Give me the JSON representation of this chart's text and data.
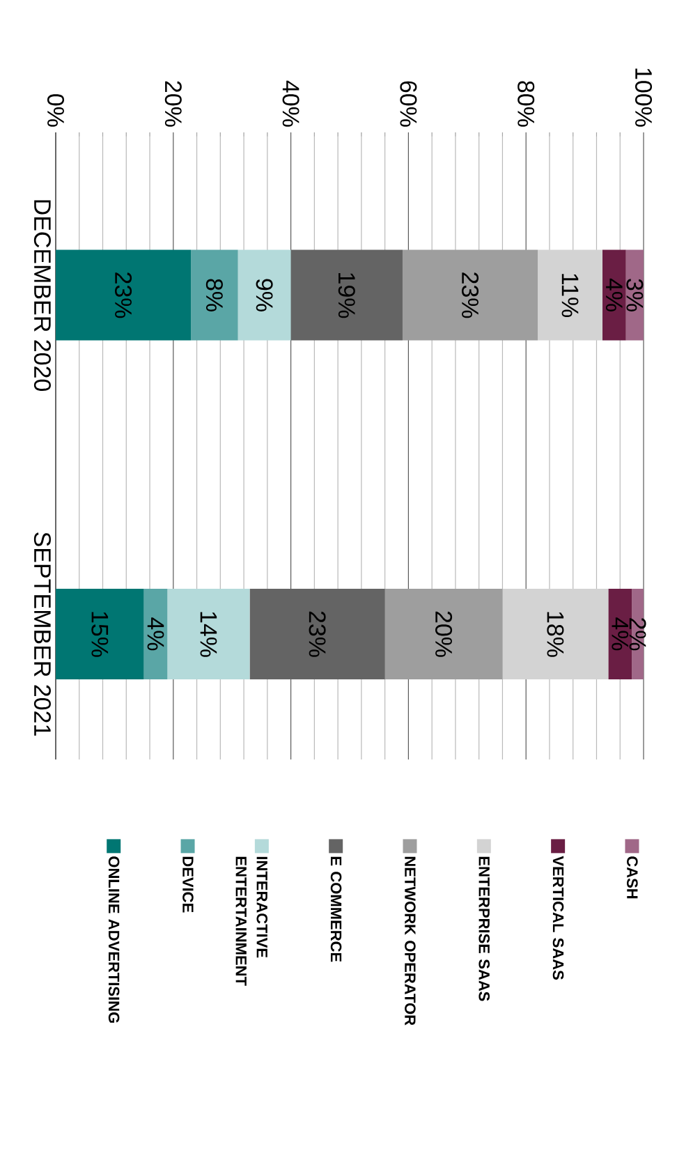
{
  "chart_data": {
    "type": "bar",
    "stacked": true,
    "orientation": "horizontal",
    "data_labels": true,
    "categories": [
      "DECEMBER 2020",
      "SEPTEMBER 2021"
    ],
    "xlim": [
      0,
      100
    ],
    "xticks": [
      {
        "value": 0,
        "label": "0%"
      },
      {
        "value": 20,
        "label": "20%"
      },
      {
        "value": 40,
        "label": "40%"
      },
      {
        "value": 60,
        "label": "60%"
      },
      {
        "value": 80,
        "label": "80%"
      },
      {
        "value": 100,
        "label": "100%"
      }
    ],
    "grid": "x",
    "legend": "bottom",
    "series": [
      {
        "name": "ONLINE ADVERTISING",
        "color": "#007672",
        "values": [
          23,
          15
        ],
        "value_labels": [
          "23%",
          "15%"
        ]
      },
      {
        "name": "DEVICE",
        "color": "#5aa6a6",
        "values": [
          8,
          4
        ],
        "value_labels": [
          "8%",
          "4%"
        ]
      },
      {
        "name": "INTERACTIVE ENTERTAINMENT",
        "color": "#b4dada",
        "values": [
          9,
          14
        ],
        "value_labels": [
          "9%",
          "14%"
        ]
      },
      {
        "name": "E COMMERCE",
        "color": "#646464",
        "values": [
          19,
          23
        ],
        "value_labels": [
          "19%",
          "23%"
        ]
      },
      {
        "name": "NETWORK OPERATOR",
        "color": "#9e9e9e",
        "values": [
          23,
          20
        ],
        "value_labels": [
          "23%",
          "20%"
        ]
      },
      {
        "name": "ENTERPRISE SAAS",
        "color": "#d3d3d3",
        "values": [
          11,
          18
        ],
        "value_labels": [
          "11%",
          "18%"
        ]
      },
      {
        "name": "VERTICAL SAAS",
        "color": "#6a1e44",
        "values": [
          4,
          4
        ],
        "value_labels": [
          "4%",
          "4%"
        ]
      },
      {
        "name": "CASH",
        "color": "#a06888",
        "values": [
          3,
          2
        ],
        "value_labels": [
          "3%",
          "2%"
        ]
      }
    ]
  }
}
